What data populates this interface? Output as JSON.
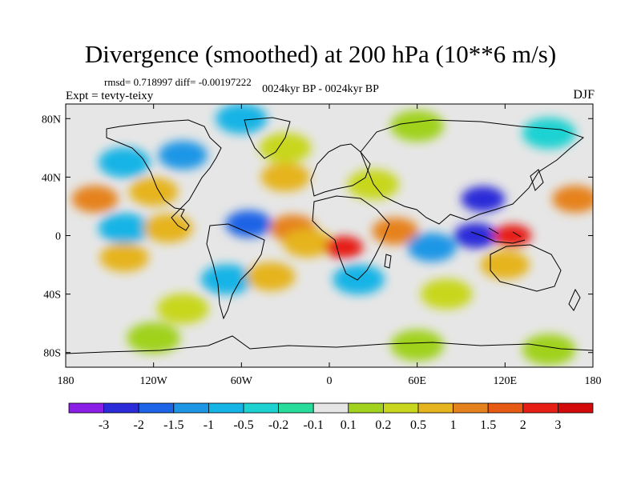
{
  "title": "Divergence (smoothed) at 200 hPa (10**6 m/s)",
  "stats": "rmsd= 0.718997 diff= -0.00197222",
  "subtitle": "0024kyr BP - 0024kyr BP",
  "expt": "Expt = tevty-teixy",
  "season": "DJF",
  "chart_data": {
    "type": "heatmap",
    "xlim": [
      -180,
      180
    ],
    "ylim": [
      -90,
      90
    ],
    "x_ticks": [
      {
        "value": -180,
        "label": "180"
      },
      {
        "value": -120,
        "label": "120W"
      },
      {
        "value": -60,
        "label": "60W"
      },
      {
        "value": 0,
        "label": "0"
      },
      {
        "value": 60,
        "label": "60E"
      },
      {
        "value": 120,
        "label": "120E"
      },
      {
        "value": 180,
        "label": "180"
      }
    ],
    "y_ticks": [
      {
        "value": 80,
        "label": "80N"
      },
      {
        "value": 40,
        "label": "40N"
      },
      {
        "value": 0,
        "label": "0"
      },
      {
        "value": -40,
        "label": "40S"
      },
      {
        "value": -80,
        "label": "80S"
      }
    ],
    "colorbar": {
      "labels": [
        "-3",
        "-2",
        "-1.5",
        "-1",
        "-0.5",
        "-0.2",
        "-0.1",
        "0.1",
        "0.2",
        "0.5",
        "1",
        "1.5",
        "2",
        "3"
      ],
      "colors": [
        "#8a1ee6",
        "#2b2bd9",
        "#1e64e6",
        "#1e96e6",
        "#14b4e6",
        "#1ed2d2",
        "#28dc9b",
        "#e6e6e6",
        "#a0d21e",
        "#c8d71e",
        "#e6b41e",
        "#e6821e",
        "#e65a14",
        "#e61e14",
        "#d20a0a"
      ]
    },
    "regions": [
      {
        "lon": -160,
        "lat": 25,
        "value": 1.5
      },
      {
        "lon": -120,
        "lat": 30,
        "value": 1
      },
      {
        "lon": -30,
        "lat": 40,
        "value": 1
      },
      {
        "lon": 30,
        "lat": 35,
        "value": 0.5
      },
      {
        "lon": 105,
        "lat": 25,
        "value": -2
      },
      {
        "lon": 168,
        "lat": 25,
        "value": 1.5
      },
      {
        "lon": -100,
        "lat": 55,
        "value": -1
      },
      {
        "lon": -30,
        "lat": 60,
        "value": 0.5
      },
      {
        "lon": -140,
        "lat": 50,
        "value": -0.5
      },
      {
        "lon": -140,
        "lat": 5,
        "value": -0.5
      },
      {
        "lon": -110,
        "lat": 5,
        "value": 1
      },
      {
        "lon": -55,
        "lat": 8,
        "value": -1.5
      },
      {
        "lon": -25,
        "lat": 5,
        "value": 1.5
      },
      {
        "lon": -15,
        "lat": -5,
        "value": 1
      },
      {
        "lon": 10,
        "lat": -8,
        "value": 3
      },
      {
        "lon": 45,
        "lat": 3,
        "value": 1.5
      },
      {
        "lon": 70,
        "lat": -8,
        "value": -1
      },
      {
        "lon": 100,
        "lat": 0,
        "value": -2
      },
      {
        "lon": 125,
        "lat": 0,
        "value": 3
      },
      {
        "lon": 120,
        "lat": -20,
        "value": 1
      },
      {
        "lon": -140,
        "lat": -15,
        "value": 1
      },
      {
        "lon": -70,
        "lat": -30,
        "value": -0.5
      },
      {
        "lon": -40,
        "lat": -28,
        "value": 1
      },
      {
        "lon": 20,
        "lat": -30,
        "value": -0.5
      },
      {
        "lon": 80,
        "lat": -40,
        "value": 0.5
      },
      {
        "lon": -100,
        "lat": -50,
        "value": 0.5
      },
      {
        "lon": -120,
        "lat": -70,
        "value": 0.2
      },
      {
        "lon": 60,
        "lat": -75,
        "value": 0.2
      },
      {
        "lon": 150,
        "lat": -78,
        "value": 0.2
      },
      {
        "lon": -60,
        "lat": 80,
        "value": -0.5
      },
      {
        "lon": 60,
        "lat": 75,
        "value": 0.2
      },
      {
        "lon": 150,
        "lat": 70,
        "value": -0.2
      }
    ]
  }
}
